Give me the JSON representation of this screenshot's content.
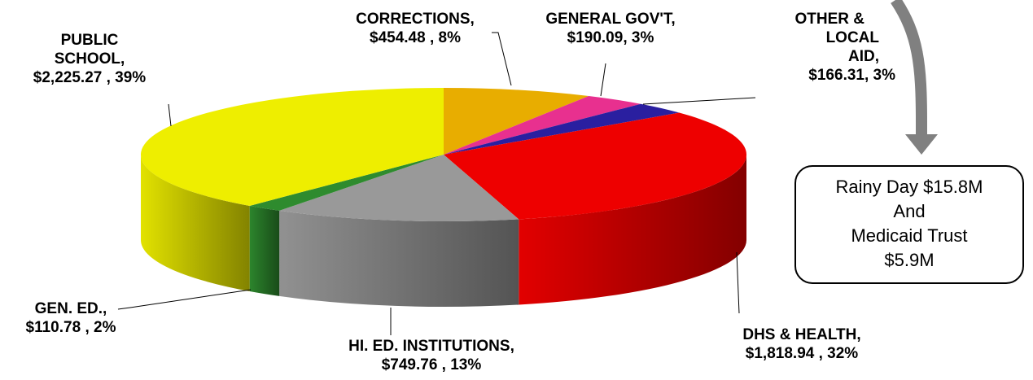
{
  "chart_data": {
    "type": "pie",
    "style": "3d",
    "slices": [
      {
        "name": "CORRECTIONS",
        "value_label": "$454.48 , 8%",
        "value": 454.48,
        "percent": 8,
        "color": "#E8AD00"
      },
      {
        "name": "GENERAL GOV'T",
        "value_label": "$190.09, 3%",
        "value": 190.09,
        "percent": 3,
        "color": "#E8308F"
      },
      {
        "name": "OTHER & LOCAL AID",
        "value_label": "$166.31, 3%",
        "value": 166.31,
        "percent": 3,
        "color": "#2A1FA0"
      },
      {
        "name": "DHS & HEALTH",
        "value_label": "$1,818.94 , 32%",
        "value": 1818.94,
        "percent": 32,
        "color": "#EE0000"
      },
      {
        "name": "HI. ED. INSTITUTIONS",
        "value_label": "$749.76 , 13%",
        "value": 749.76,
        "percent": 13,
        "color": "#999999"
      },
      {
        "name": "GEN. ED.",
        "value_label": "$110.78 , 2%",
        "value": 110.78,
        "percent": 2,
        "color": "#2E8B2E"
      },
      {
        "name": "PUBLIC SCHOOL",
        "value_label": "$2,225.27 , 39%",
        "value": 2225.27,
        "percent": 39,
        "color": "#EEEE00"
      }
    ],
    "title": "",
    "legend": "none"
  },
  "labels": {
    "corrections": {
      "l1": "CORRECTIONS,",
      "l2": "$454.48 , 8%"
    },
    "general_gov": {
      "l1": "GENERAL GOV'T,",
      "l2": "$190.09, 3%"
    },
    "other_local": {
      "l1": "OTHER &",
      "l2": "LOCAL",
      "l3": "AID,",
      "l4": "$166.31, 3%"
    },
    "dhs_health": {
      "l1": "DHS & HEALTH,",
      "l2": "$1,818.94 , 32%"
    },
    "hi_ed": {
      "l1": "HI. ED. INSTITUTIONS,",
      "l2": "$749.76 , 13%"
    },
    "gen_ed": {
      "l1": "GEN. ED.,",
      "l2": "$110.78 , 2%"
    },
    "public_school": {
      "l1": "PUBLIC",
      "l2": "SCHOOL,",
      "l3": "$2,225.27 , 39%"
    }
  },
  "callout": {
    "l1": "Rainy Day $15.8M",
    "l2": "And",
    "l3": "Medicaid Trust",
    "l4": "$5.9M"
  },
  "arrow_color": "#808080"
}
